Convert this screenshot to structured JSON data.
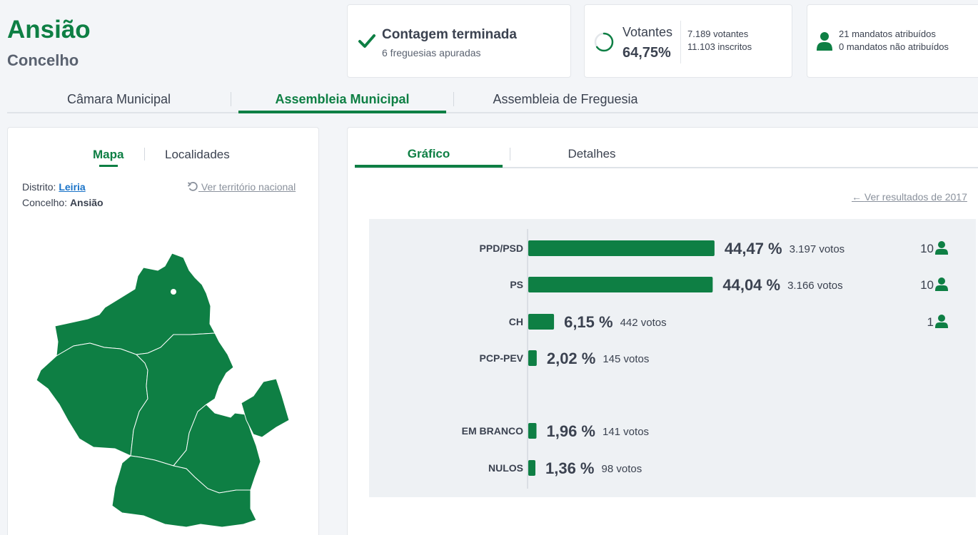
{
  "header": {
    "title": "Ansião",
    "subtitle": "Concelho"
  },
  "status": {
    "title": "Contagem terminada",
    "sub": "6 freguesias apuradas"
  },
  "voters": {
    "label": "Votantes",
    "pct": "64,75%",
    "progress": 0.6475,
    "votes": "7.189 votantes",
    "registered": "11.103 inscritos"
  },
  "mandates": {
    "assigned": "21 mandatos atribuídos",
    "unassigned": "0 mandatos não atribuídos"
  },
  "main_tabs": [
    {
      "label": "Câmara Municipal"
    },
    {
      "label": "Assembleia Municipal",
      "active": true
    },
    {
      "label": "Assembleia de Freguesia"
    }
  ],
  "map_panel": {
    "tabs": [
      {
        "label": "Mapa",
        "active": true
      },
      {
        "label": "Localidades"
      }
    ],
    "district_label": "Distrito:",
    "district": "Leiria",
    "council_label": "Concelho:",
    "council": "Ansião",
    "national_link": "Ver território nacional"
  },
  "chart_panel": {
    "tabs": [
      {
        "label": "Gráfico",
        "active": true
      },
      {
        "label": "Detalhes"
      }
    ],
    "prev_link": "Ver resultados de 2017"
  },
  "colors": {
    "brand": "#0e7f44",
    "text": "#3b4250",
    "link": "#1a73c8"
  },
  "chart_data": {
    "type": "bar",
    "orientation": "horizontal",
    "categories": [
      "PPD/PSD",
      "PS",
      "CH",
      "PCP-PEV",
      "EM BRANCO",
      "NULOS"
    ],
    "values": [
      44.47,
      44.04,
      6.15,
      2.02,
      1.96,
      1.36
    ],
    "value_labels": [
      "44,47 %",
      "44,04 %",
      "6,15 %",
      "2,02 %",
      "1,96 %",
      "1,36 %"
    ],
    "votes_labels": [
      "3.197 votos",
      "3.166 votos",
      "442 votos",
      "145 votos",
      "141 votos",
      "98 votos"
    ],
    "votes": [
      3197,
      3166,
      442,
      145,
      141,
      98
    ],
    "mandates": [
      "10",
      "10",
      "1",
      "",
      "",
      ""
    ],
    "groups": [
      "party",
      "party",
      "party",
      "party",
      "other",
      "other"
    ]
  }
}
